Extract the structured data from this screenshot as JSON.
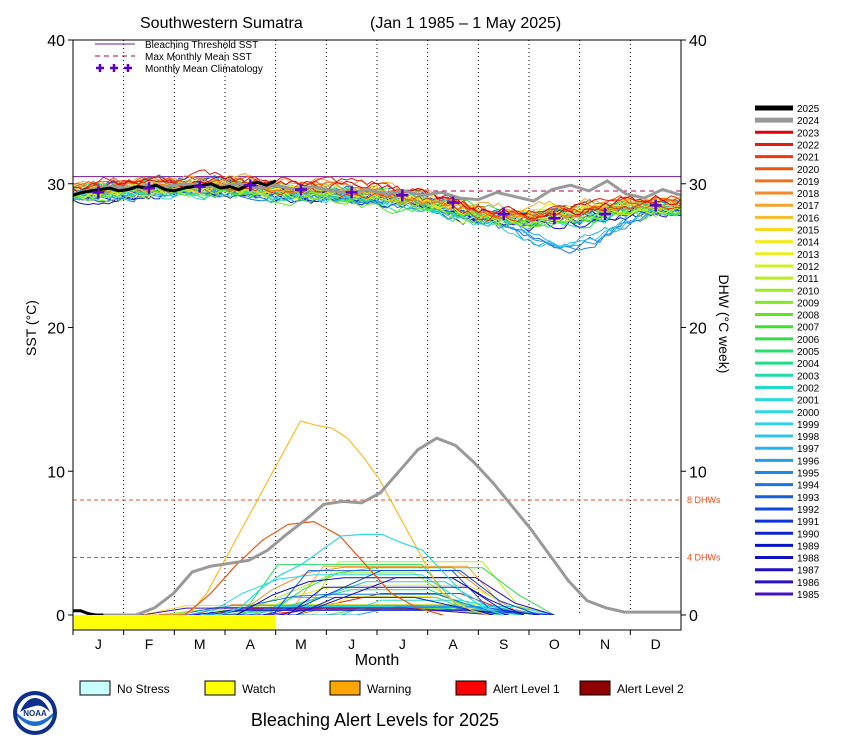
{
  "chart_data": {
    "type": "line",
    "title": "Southwestern Sumatra",
    "date_range": "(Jan 1 1985 – 1 May 2025)",
    "xlabel": "Month",
    "ylabel_left": "SST (°C)",
    "ylabel_right": "DHW (°C week)",
    "months": [
      "J",
      "F",
      "M",
      "A",
      "M",
      "J",
      "J",
      "A",
      "S",
      "O",
      "N",
      "D"
    ],
    "ylim": [
      0,
      40
    ],
    "yticks": [
      0,
      10,
      20,
      30,
      40
    ],
    "legend_top": [
      "Bleaching Threshold SST",
      "Max Monthly Mean SST",
      "Monthly Mean Climatology"
    ],
    "bleaching_threshold": 30.5,
    "max_monthly_mean": 29.5,
    "climatology": [
      29.4,
      29.7,
      29.8,
      29.9,
      29.6,
      29.4,
      29.2,
      28.7,
      27.9,
      27.6,
      27.9,
      28.5
    ],
    "dhw_lines": [
      {
        "label": "8 DHWs",
        "value": 8
      },
      {
        "label": "4 DHWs",
        "value": 4
      }
    ],
    "years": [
      "2025",
      "2024",
      "2023",
      "2022",
      "2021",
      "2020",
      "2019",
      "2018",
      "2017",
      "2016",
      "2015",
      "2014",
      "2013",
      "2012",
      "2011",
      "2010",
      "2009",
      "2008",
      "2007",
      "2006",
      "2005",
      "2004",
      "2003",
      "2002",
      "2001",
      "2000",
      "1999",
      "1998",
      "1997",
      "1996",
      "1995",
      "1994",
      "1993",
      "1992",
      "1991",
      "1990",
      "1989",
      "1988",
      "1987",
      "1986",
      "1985"
    ],
    "year_colors": [
      "#000000",
      "#999999",
      "#e0000a",
      "#e81c0c",
      "#ee3a0c",
      "#f0550e",
      "#f2701c",
      "#f48a28",
      "#f6a430",
      "#f8bc28",
      "#f8d820",
      "#f4ec20",
      "#e8f020",
      "#d4f020",
      "#b8ee20",
      "#9cec20",
      "#80e820",
      "#5ee420",
      "#40e030",
      "#30dc48",
      "#28dc68",
      "#20dc88",
      "#20dcac",
      "#20dcc8",
      "#28dcdc",
      "#30d8e4",
      "#34d0e8",
      "#30c4ec",
      "#28b4ec",
      "#20a0ec",
      "#1c8ae8",
      "#1874e4",
      "#145ee0",
      "#1048dc",
      "#0c34d8",
      "#0a24d0",
      "#0814c8",
      "#1010c0",
      "#2010c0",
      "#3010c4",
      "#4410c8"
    ],
    "sst_2025": [
      29.2,
      29.4,
      29.5,
      29.6,
      29.7,
      29.5,
      29.6,
      29.8,
      29.7,
      29.9,
      29.6,
      29.5,
      29.7,
      29.8,
      29.9,
      30.0,
      29.7,
      29.8,
      29.6,
      29.9,
      30.1,
      29.9,
      30.2
    ],
    "sst_2024": [
      29.3,
      29.6,
      29.8,
      29.7,
      29.9,
      29.8,
      30.0,
      29.9,
      29.8,
      30.0,
      29.7,
      29.9,
      29.6,
      29.8,
      29.5,
      29.4,
      29.6,
      29.3,
      29.5,
      29.2,
      29.4,
      29.0,
      28.9,
      29.4,
      29.1,
      28.8,
      29.6,
      29.9,
      29.5,
      30.2,
      29.3,
      29.0,
      29.6,
      29.2
    ],
    "dhw_2024": [
      0,
      0,
      0,
      0.5,
      1.5,
      3.0,
      3.4,
      3.6,
      3.8,
      4.5,
      5.6,
      6.6,
      7.7,
      7.9,
      7.8,
      8.5,
      10.0,
      11.5,
      12.3,
      11.8,
      10.6,
      9.2,
      7.6,
      6.0,
      4.2,
      2.4,
      1.0,
      0.5,
      0.2,
      0.2,
      0.2,
      0.2
    ],
    "dhw_2016": [
      0,
      0,
      0,
      0.2,
      1.5,
      3.5,
      5.5,
      7.5,
      9.5,
      11.5,
      13.5,
      13.2,
      13.0,
      12.3,
      11.0,
      9.5,
      7.5,
      5.5,
      3.5,
      1.6,
      0.8,
      0.3,
      0
    ],
    "dhw_2025": [
      0.3,
      0.3,
      0.1,
      0,
      0
    ],
    "legend_bottom": [
      "No Stress",
      "Watch",
      "Warning",
      "Alert Level 1",
      "Alert Level 2"
    ],
    "legend_bottom_colors": [
      "#c8ffff",
      "#ffff00",
      "#ffa500",
      "#ff0000",
      "#900000"
    ],
    "footer": "Bleaching Alert Levels for 2025",
    "logo_text": "NOAA"
  }
}
